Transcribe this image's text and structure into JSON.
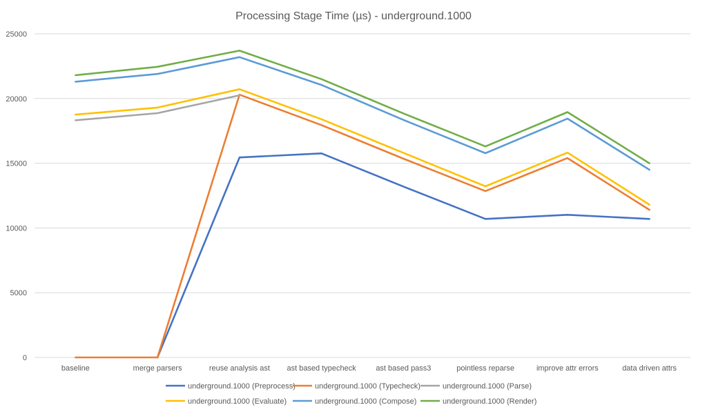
{
  "chart_data": {
    "type": "line",
    "title": "Processing Stage Time (µs) - underground.1000",
    "xlabel": "",
    "ylabel": "",
    "categories": [
      "baseline",
      "merge parsers",
      "reuse analysis ast",
      "ast based typecheck",
      "ast based pass3",
      "pointless reparse",
      "improve attr errors",
      "data driven attrs"
    ],
    "ylim": [
      0,
      25000
    ],
    "yticks": [
      0,
      5000,
      10000,
      15000,
      20000,
      25000
    ],
    "grid": true,
    "legend_position": "bottom",
    "series": [
      {
        "name": "underground.1000 (Preprocess)",
        "color": "#4472C4",
        "values": [
          null,
          0,
          15450,
          15760,
          13200,
          10700,
          11020,
          10700
        ]
      },
      {
        "name": "underground.1000 (Typecheck)",
        "color": "#ED7D31",
        "values": [
          0,
          0,
          20300,
          17950,
          15350,
          12850,
          15400,
          11400
        ]
      },
      {
        "name": "underground.1000 (Parse)",
        "color": "#A5A5A5",
        "values": [
          18320,
          18870,
          20250,
          null,
          null,
          null,
          null,
          null
        ]
      },
      {
        "name": "underground.1000 (Evaluate)",
        "color": "#FFC000",
        "values": [
          18760,
          19300,
          20720,
          18400,
          15800,
          13220,
          15820,
          11800
        ]
      },
      {
        "name": "underground.1000 (Compose)",
        "color": "#5B9BD5",
        "values": [
          21300,
          21900,
          23200,
          21050,
          18350,
          15780,
          18450,
          14500
        ]
      },
      {
        "name": "underground.1000 (Render)",
        "color": "#70AD47",
        "values": [
          21800,
          22450,
          23700,
          21500,
          18850,
          16300,
          18950,
          15000
        ]
      }
    ]
  }
}
